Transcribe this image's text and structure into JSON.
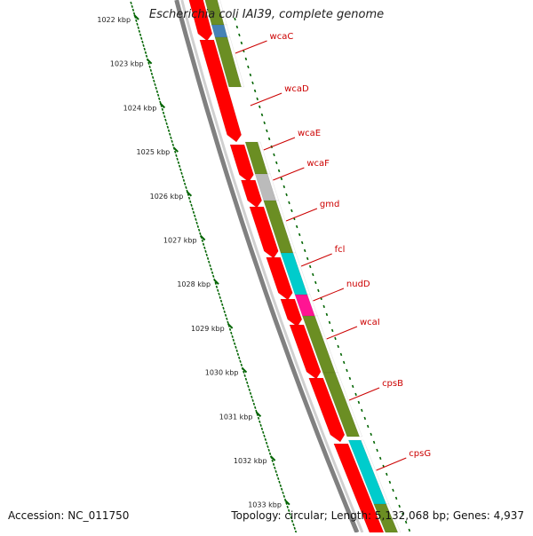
{
  "title": "Escherichia coli IAI39, complete genome",
  "accession": "Accession: NC_011750",
  "topology": "Topology: circular; Length: 5,132,068 bp; Genes: 4,937",
  "colors": {
    "cds": "#ff0000",
    "olive": "#6b8e23",
    "blue": "#4682b4",
    "grey": "#bbbbbb",
    "cyan": "#00cccc",
    "magenta": "#ff1493",
    "label": "#cc0000",
    "ticks": "#006400",
    "backbone": "#808080"
  },
  "kbp_labels": [
    "1022 kbp",
    "1023 kbp",
    "1024 kbp",
    "1025 kbp",
    "1026 kbp",
    "1027 kbp",
    "1028 kbp",
    "1029 kbp",
    "1030 kbp",
    "1031 kbp",
    "1032 kbp",
    "1033 kbp"
  ],
  "genes": [
    {
      "name": "wcaC"
    },
    {
      "name": "wcaD"
    },
    {
      "name": "wcaE"
    },
    {
      "name": "wcaF"
    },
    {
      "name": "gmd"
    },
    {
      "name": "fcl"
    },
    {
      "name": "nudD"
    },
    {
      "name": "wcaI"
    },
    {
      "name": "cpsB"
    },
    {
      "name": "cpsG"
    }
  ]
}
